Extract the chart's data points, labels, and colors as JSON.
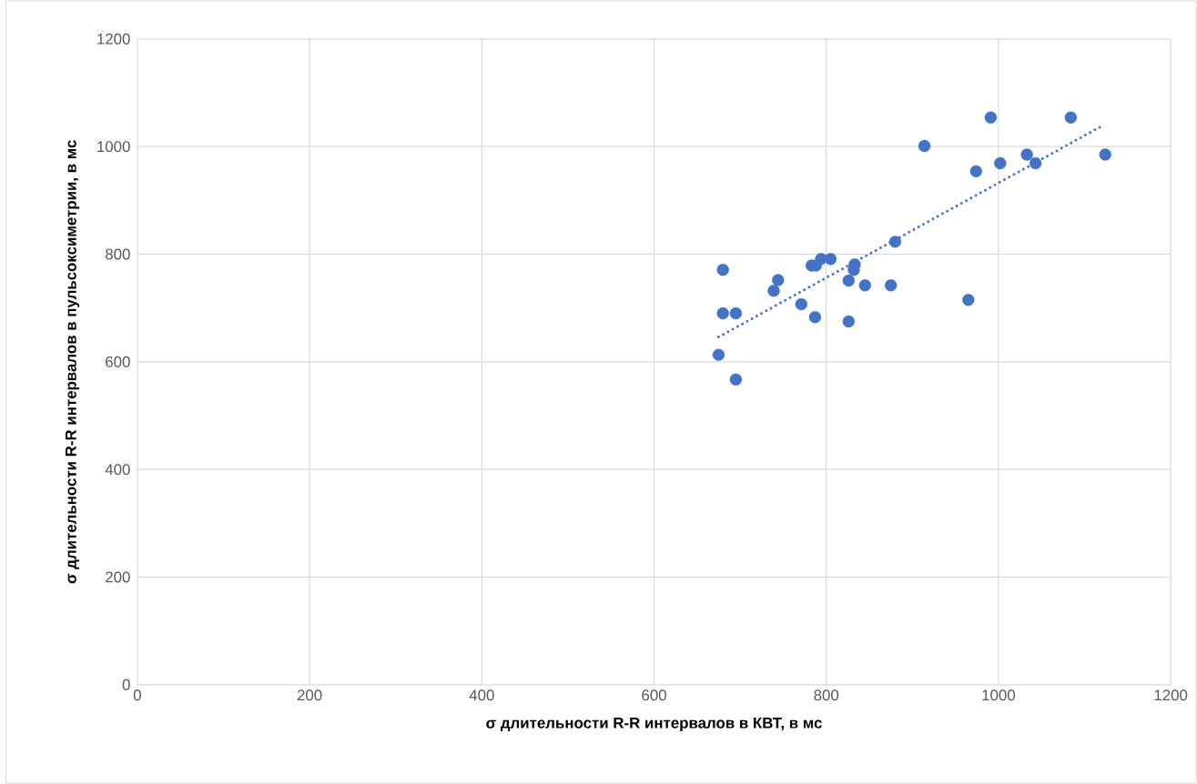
{
  "chart_data": {
    "type": "scatter",
    "xlabel": "σ длительности R-R интервалов в КВТ, в мс",
    "ylabel": "σ длительности R-R интервалов в пульсоксиметрии, в мс",
    "xlim": [
      0,
      1200
    ],
    "ylim": [
      0,
      1200
    ],
    "xticks": [
      0,
      200,
      400,
      600,
      800,
      1000,
      1200
    ],
    "yticks": [
      0,
      200,
      400,
      600,
      800,
      1000,
      1200
    ],
    "grid": true,
    "series": [
      {
        "color": "#4472c4",
        "marker": "circle",
        "x": [
          675,
          680,
          680,
          695,
          695,
          739,
          744,
          771,
          787,
          783,
          788,
          794,
          805,
          826,
          826,
          832,
          833,
          845,
          875,
          880,
          914,
          965,
          974,
          991,
          1002,
          1033,
          1043,
          1084,
          1124
        ],
        "values": [
          613,
          771,
          690,
          690,
          567,
          732,
          752,
          707,
          683,
          779,
          779,
          791,
          791,
          751,
          675,
          771,
          781,
          742,
          742,
          823,
          1001,
          715,
          954,
          1054,
          969,
          985,
          969,
          1054,
          985
        ]
      },
      {
        "type": "line",
        "color": "#4472c4",
        "line_style": "dotted",
        "marker": "none",
        "x": [
          675,
          1120
        ],
        "values": [
          646,
          1038
        ]
      }
    ]
  }
}
